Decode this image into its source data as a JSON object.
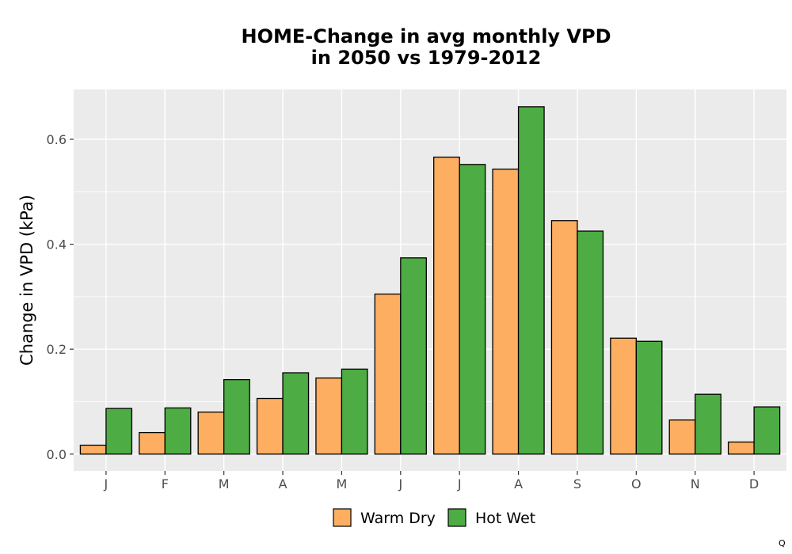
{
  "chart_data": {
    "type": "bar",
    "title": [
      "HOME-Change in avg monthly VPD",
      "in 2050 vs 1979-2012"
    ],
    "xlabel": "",
    "ylabel": "Change in VPD (kPa)",
    "categories": [
      "J",
      "F",
      "M",
      "A",
      "M",
      "J",
      "J",
      "A",
      "S",
      "O",
      "N",
      "D"
    ],
    "ylim": [
      -0.032,
      0.695
    ],
    "yticks": [
      0.0,
      0.2,
      0.4,
      0.6
    ],
    "ytick_labels": [
      "0.0",
      "0.2",
      "0.4",
      "0.6"
    ],
    "grid": true,
    "legend_position": "bottom",
    "series": [
      {
        "name": "Warm Dry",
        "color": "#FDAE61",
        "values": [
          0.017,
          0.041,
          0.08,
          0.106,
          0.145,
          0.305,
          0.566,
          0.543,
          0.445,
          0.221,
          0.065,
          0.023
        ]
      },
      {
        "name": "Hot Wet",
        "color": "#4DAC44",
        "values": [
          0.087,
          0.088,
          0.142,
          0.155,
          0.162,
          0.374,
          0.552,
          0.662,
          0.425,
          0.215,
          0.114,
          0.09
        ]
      }
    ]
  },
  "corner_label": "Q",
  "colors": {
    "panel": "#EBEBEB",
    "grid": "#FFFFFF",
    "bar_border": "#000000"
  }
}
